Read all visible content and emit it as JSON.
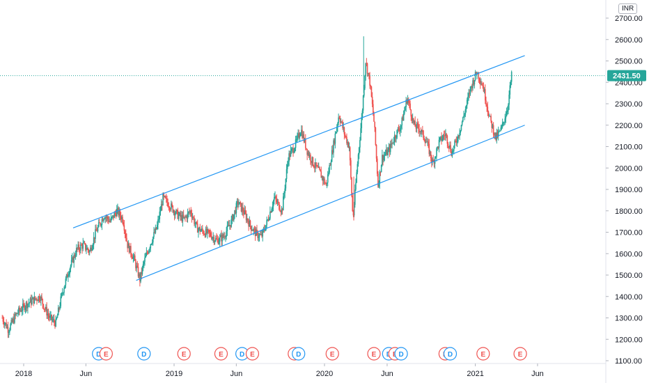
{
  "currency": "INR",
  "chart_data": {
    "type": "candlestick",
    "y_ticks": [
      "1100.00",
      "1200.00",
      "1300.00",
      "1400.00",
      "1500.00",
      "1600.00",
      "1700.00",
      "1800.00",
      "1900.00",
      "2000.00",
      "2100.00",
      "2200.00",
      "2300.00",
      "2400.00",
      "2500.00",
      "2600.00",
      "2700.00"
    ],
    "x_ticks": [
      "2018",
      "Jun",
      "2019",
      "Jun",
      "2020",
      "Jun",
      "2021",
      "Jun"
    ],
    "ylim": [
      1090,
      2760
    ],
    "last_price": "2431.50",
    "last_price_value": 2431.5,
    "colors": {
      "up": "#26a69a",
      "down": "#ef5350",
      "channel": "#2196f3",
      "dividend": "#2196f3",
      "earnings": "#ef5350",
      "badge": "#26a69a"
    },
    "channel": {
      "upper": [
        [
          "2018-05-01",
          1720
        ],
        [
          "2021-05-01",
          2525
        ]
      ],
      "lower": [
        [
          "2018-10-01",
          1475
        ],
        [
          "2021-05-01",
          2200
        ]
      ]
    },
    "ohlc_keypoints": [
      [
        "2017-11-10",
        1300
      ],
      [
        "2017-11-25",
        1245
      ],
      [
        "2017-12-15",
        1320
      ],
      [
        "2018-01-05",
        1360
      ],
      [
        "2018-01-25",
        1385
      ],
      [
        "2018-02-10",
        1400
      ],
      [
        "2018-02-20",
        1350
      ],
      [
        "2018-03-05",
        1300
      ],
      [
        "2018-03-20",
        1275
      ],
      [
        "2018-04-05",
        1420
      ],
      [
        "2018-04-20",
        1520
      ],
      [
        "2018-05-10",
        1620
      ],
      [
        "2018-05-25",
        1640
      ],
      [
        "2018-06-10",
        1610
      ],
      [
        "2018-06-25",
        1700
      ],
      [
        "2018-07-15",
        1780
      ],
      [
        "2018-07-30",
        1750
      ],
      [
        "2018-08-15",
        1800
      ],
      [
        "2018-08-30",
        1760
      ],
      [
        "2018-09-10",
        1640
      ],
      [
        "2018-09-25",
        1580
      ],
      [
        "2018-10-10",
        1480
      ],
      [
        "2018-10-20",
        1560
      ],
      [
        "2018-11-05",
        1650
      ],
      [
        "2018-11-20",
        1720
      ],
      [
        "2018-12-05",
        1860
      ],
      [
        "2018-12-20",
        1830
      ],
      [
        "2019-01-10",
        1780
      ],
      [
        "2019-01-25",
        1760
      ],
      [
        "2019-02-10",
        1800
      ],
      [
        "2019-02-25",
        1720
      ],
      [
        "2019-03-15",
        1700
      ],
      [
        "2019-03-30",
        1690
      ],
      [
        "2019-04-15",
        1660
      ],
      [
        "2019-05-01",
        1680
      ],
      [
        "2019-05-20",
        1750
      ],
      [
        "2019-06-05",
        1840
      ],
      [
        "2019-06-20",
        1790
      ],
      [
        "2019-07-05",
        1730
      ],
      [
        "2019-07-20",
        1690
      ],
      [
        "2019-08-01",
        1680
      ],
      [
        "2019-08-15",
        1750
      ],
      [
        "2019-09-01",
        1860
      ],
      [
        "2019-09-20",
        1800
      ],
      [
        "2019-10-05",
        2050
      ],
      [
        "2019-10-20",
        2100
      ],
      [
        "2019-11-05",
        2180
      ],
      [
        "2019-11-20",
        2080
      ],
      [
        "2019-12-05",
        2020
      ],
      [
        "2019-12-20",
        1980
      ],
      [
        "2020-01-05",
        1920
      ],
      [
        "2020-01-20",
        2080
      ],
      [
        "2020-02-05",
        2250
      ],
      [
        "2020-02-20",
        2150
      ],
      [
        "2020-03-01",
        2100
      ],
      [
        "2020-03-10",
        1760
      ],
      [
        "2020-03-20",
        2000
      ],
      [
        "2020-04-01",
        2250
      ],
      [
        "2020-04-10",
        2500
      ],
      [
        "2020-04-20",
        2400
      ],
      [
        "2020-05-01",
        2200
      ],
      [
        "2020-05-10",
        1920
      ],
      [
        "2020-05-20",
        2050
      ],
      [
        "2020-06-05",
        2080
      ],
      [
        "2020-06-20",
        2150
      ],
      [
        "2020-07-05",
        2200
      ],
      [
        "2020-07-20",
        2330
      ],
      [
        "2020-08-05",
        2200
      ],
      [
        "2020-08-20",
        2180
      ],
      [
        "2020-09-05",
        2120
      ],
      [
        "2020-09-20",
        2020
      ],
      [
        "2020-10-05",
        2120
      ],
      [
        "2020-10-20",
        2160
      ],
      [
        "2020-11-05",
        2070
      ],
      [
        "2020-11-20",
        2150
      ],
      [
        "2020-12-05",
        2250
      ],
      [
        "2020-12-20",
        2370
      ],
      [
        "2021-01-05",
        2450
      ],
      [
        "2021-01-20",
        2380
      ],
      [
        "2021-02-05",
        2230
      ],
      [
        "2021-02-20",
        2140
      ],
      [
        "2021-03-05",
        2180
      ],
      [
        "2021-03-20",
        2280
      ],
      [
        "2021-03-30",
        2431.5
      ]
    ],
    "events": [
      {
        "type": "D",
        "date": "2018-07-02"
      },
      {
        "type": "E",
        "date": "2018-07-20"
      },
      {
        "type": "D",
        "date": "2018-10-20"
      },
      {
        "type": "E",
        "date": "2019-01-25"
      },
      {
        "type": "E",
        "date": "2019-04-25"
      },
      {
        "type": "D",
        "date": "2019-06-15"
      },
      {
        "type": "E",
        "date": "2019-07-10"
      },
      {
        "type": "E",
        "date": "2019-10-20"
      },
      {
        "type": "D",
        "date": "2019-10-30"
      },
      {
        "type": "E",
        "date": "2020-01-20"
      },
      {
        "type": "E",
        "date": "2020-04-30"
      },
      {
        "type": "D",
        "date": "2020-06-05"
      },
      {
        "type": "E",
        "date": "2020-06-20"
      },
      {
        "type": "D",
        "date": "2020-07-05"
      },
      {
        "type": "E",
        "date": "2020-10-20"
      },
      {
        "type": "D",
        "date": "2020-11-01"
      },
      {
        "type": "E",
        "date": "2021-01-20"
      },
      {
        "type": "E",
        "date": "2021-04-20"
      }
    ]
  }
}
